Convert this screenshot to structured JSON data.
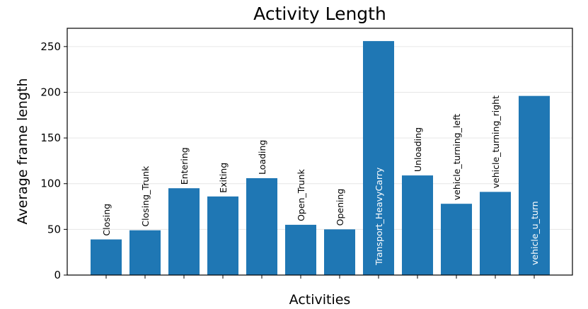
{
  "chart_data": {
    "type": "bar",
    "title": "Activity Length",
    "xlabel": "Activities",
    "ylabel": "Average frame length",
    "ylim": [
      0,
      270
    ],
    "yticks": [
      0,
      50,
      100,
      150,
      200,
      250
    ],
    "grid": "horizontal",
    "bar_color": "#1f77b4",
    "categories": [
      "Closing",
      "Closing_Trunk",
      "Entering",
      "Exiting",
      "Loading",
      "Open_Trunk",
      "Opening",
      "Transport_HeavyCarry",
      "Unloading",
      "vehicle_turning_left",
      "vehicle_turning_right",
      "vehicle_u_turn"
    ],
    "values": [
      39,
      49,
      95,
      86,
      106,
      55,
      50,
      256,
      109,
      78,
      91,
      196
    ],
    "label_inside": [
      false,
      false,
      false,
      false,
      false,
      false,
      false,
      true,
      false,
      false,
      false,
      true
    ]
  }
}
